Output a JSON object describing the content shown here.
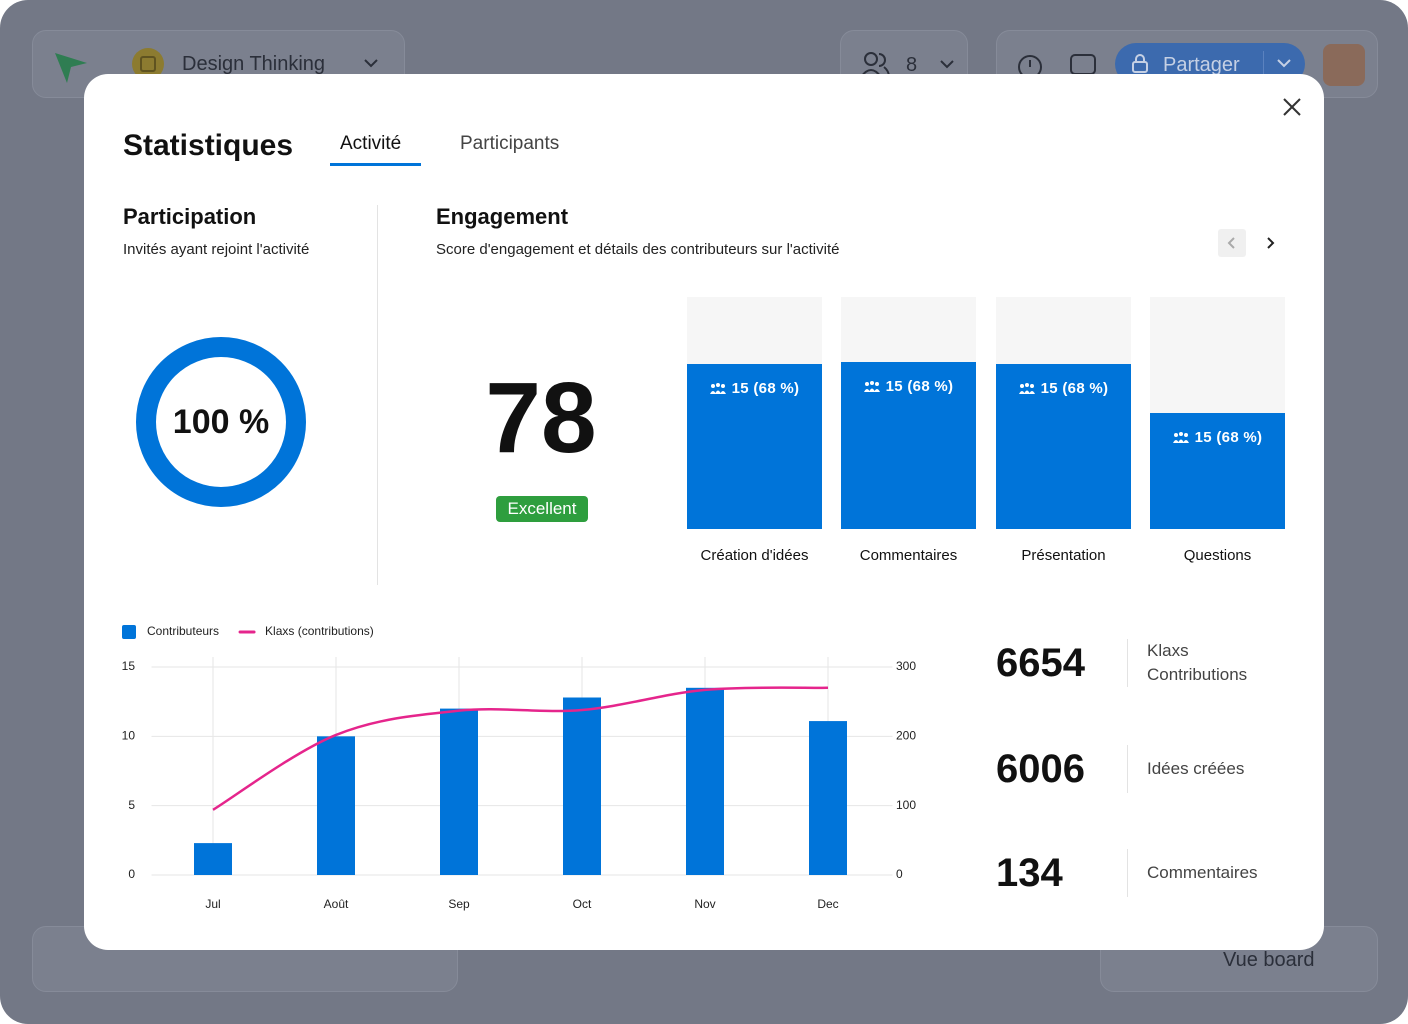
{
  "app": {
    "board_name": "Design Thinking",
    "participants_count": 8,
    "share_button": "Partager",
    "view_button": "Vue board"
  },
  "modal": {
    "title": "Statistiques",
    "tabs": [
      "Activité",
      "Participants"
    ],
    "participation": {
      "title": "Participation",
      "subtitle": "Invités ayant rejoint l'activité",
      "value": 100,
      "value_label": "100 %"
    },
    "engagement": {
      "title": "Engagement",
      "subtitle": "Score d'engagement et détails des contributeurs sur l'activité",
      "score": 78,
      "rating": "Excellent",
      "categories": [
        {
          "name": "Création d'idées",
          "label": "15 (68 %)",
          "fill": 71
        },
        {
          "name": "Commentaires",
          "label": "15 (68 %)",
          "fill": 72
        },
        {
          "name": "Présentation",
          "label": "15 (68 %)",
          "fill": 71
        },
        {
          "name": "Questions",
          "label": "15 (68 %)",
          "fill": 50
        }
      ]
    },
    "stats": [
      {
        "value": 6654,
        "label": "Klaxs Contributions"
      },
      {
        "value": 6006,
        "label": "Idées créées"
      },
      {
        "value": 134,
        "label": "Commentaires"
      }
    ]
  },
  "chart_data": {
    "type": "combo",
    "categories": [
      "Jul",
      "Août",
      "Sep",
      "Oct",
      "Nov",
      "Dec"
    ],
    "series": [
      {
        "name": "Contributeurs",
        "type": "bar",
        "color": "#0074d9",
        "values": [
          2.3,
          10,
          12,
          12.8,
          13.5,
          11.1
        ]
      },
      {
        "name": "Klaxs (contributions)",
        "type": "line",
        "axis": "y2",
        "color": "#e5258c",
        "values": [
          94,
          202,
          237,
          238,
          267,
          270
        ]
      }
    ],
    "ylim": [
      0,
      15
    ],
    "yticks": [
      0,
      5,
      10,
      15
    ],
    "y2lim": [
      0,
      300
    ],
    "y2ticks": [
      0,
      100,
      200,
      300
    ],
    "grid": true,
    "legend": "top-left"
  }
}
